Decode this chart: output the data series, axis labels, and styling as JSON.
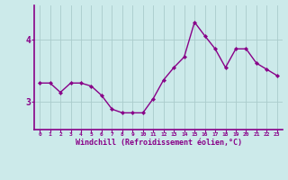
{
  "x": [
    0,
    1,
    2,
    3,
    4,
    5,
    6,
    7,
    8,
    9,
    10,
    11,
    12,
    13,
    14,
    15,
    16,
    17,
    18,
    19,
    20,
    21,
    22,
    23
  ],
  "y": [
    3.3,
    3.3,
    3.15,
    3.3,
    3.3,
    3.25,
    3.1,
    2.88,
    2.82,
    2.82,
    2.82,
    3.05,
    3.35,
    3.55,
    3.72,
    4.28,
    4.06,
    3.85,
    3.55,
    3.85,
    3.85,
    3.62,
    3.52,
    3.42
  ],
  "line_color": "#880088",
  "marker": "D",
  "marker_size": 2.2,
  "line_width": 1.0,
  "bg_color": "#cceaea",
  "grid_color": "#aacccc",
  "xlabel": "Windchill (Refroidissement éolien,°C)",
  "xlabel_color": "#880088",
  "tick_color": "#880088",
  "axis_color": "#880088",
  "yticks": [
    3,
    4
  ],
  "xticks": [
    0,
    1,
    2,
    3,
    4,
    5,
    6,
    7,
    8,
    9,
    10,
    11,
    12,
    13,
    14,
    15,
    16,
    17,
    18,
    19,
    20,
    21,
    22,
    23
  ],
  "ylim": [
    2.55,
    4.55
  ],
  "xlim": [
    -0.5,
    23.5
  ]
}
